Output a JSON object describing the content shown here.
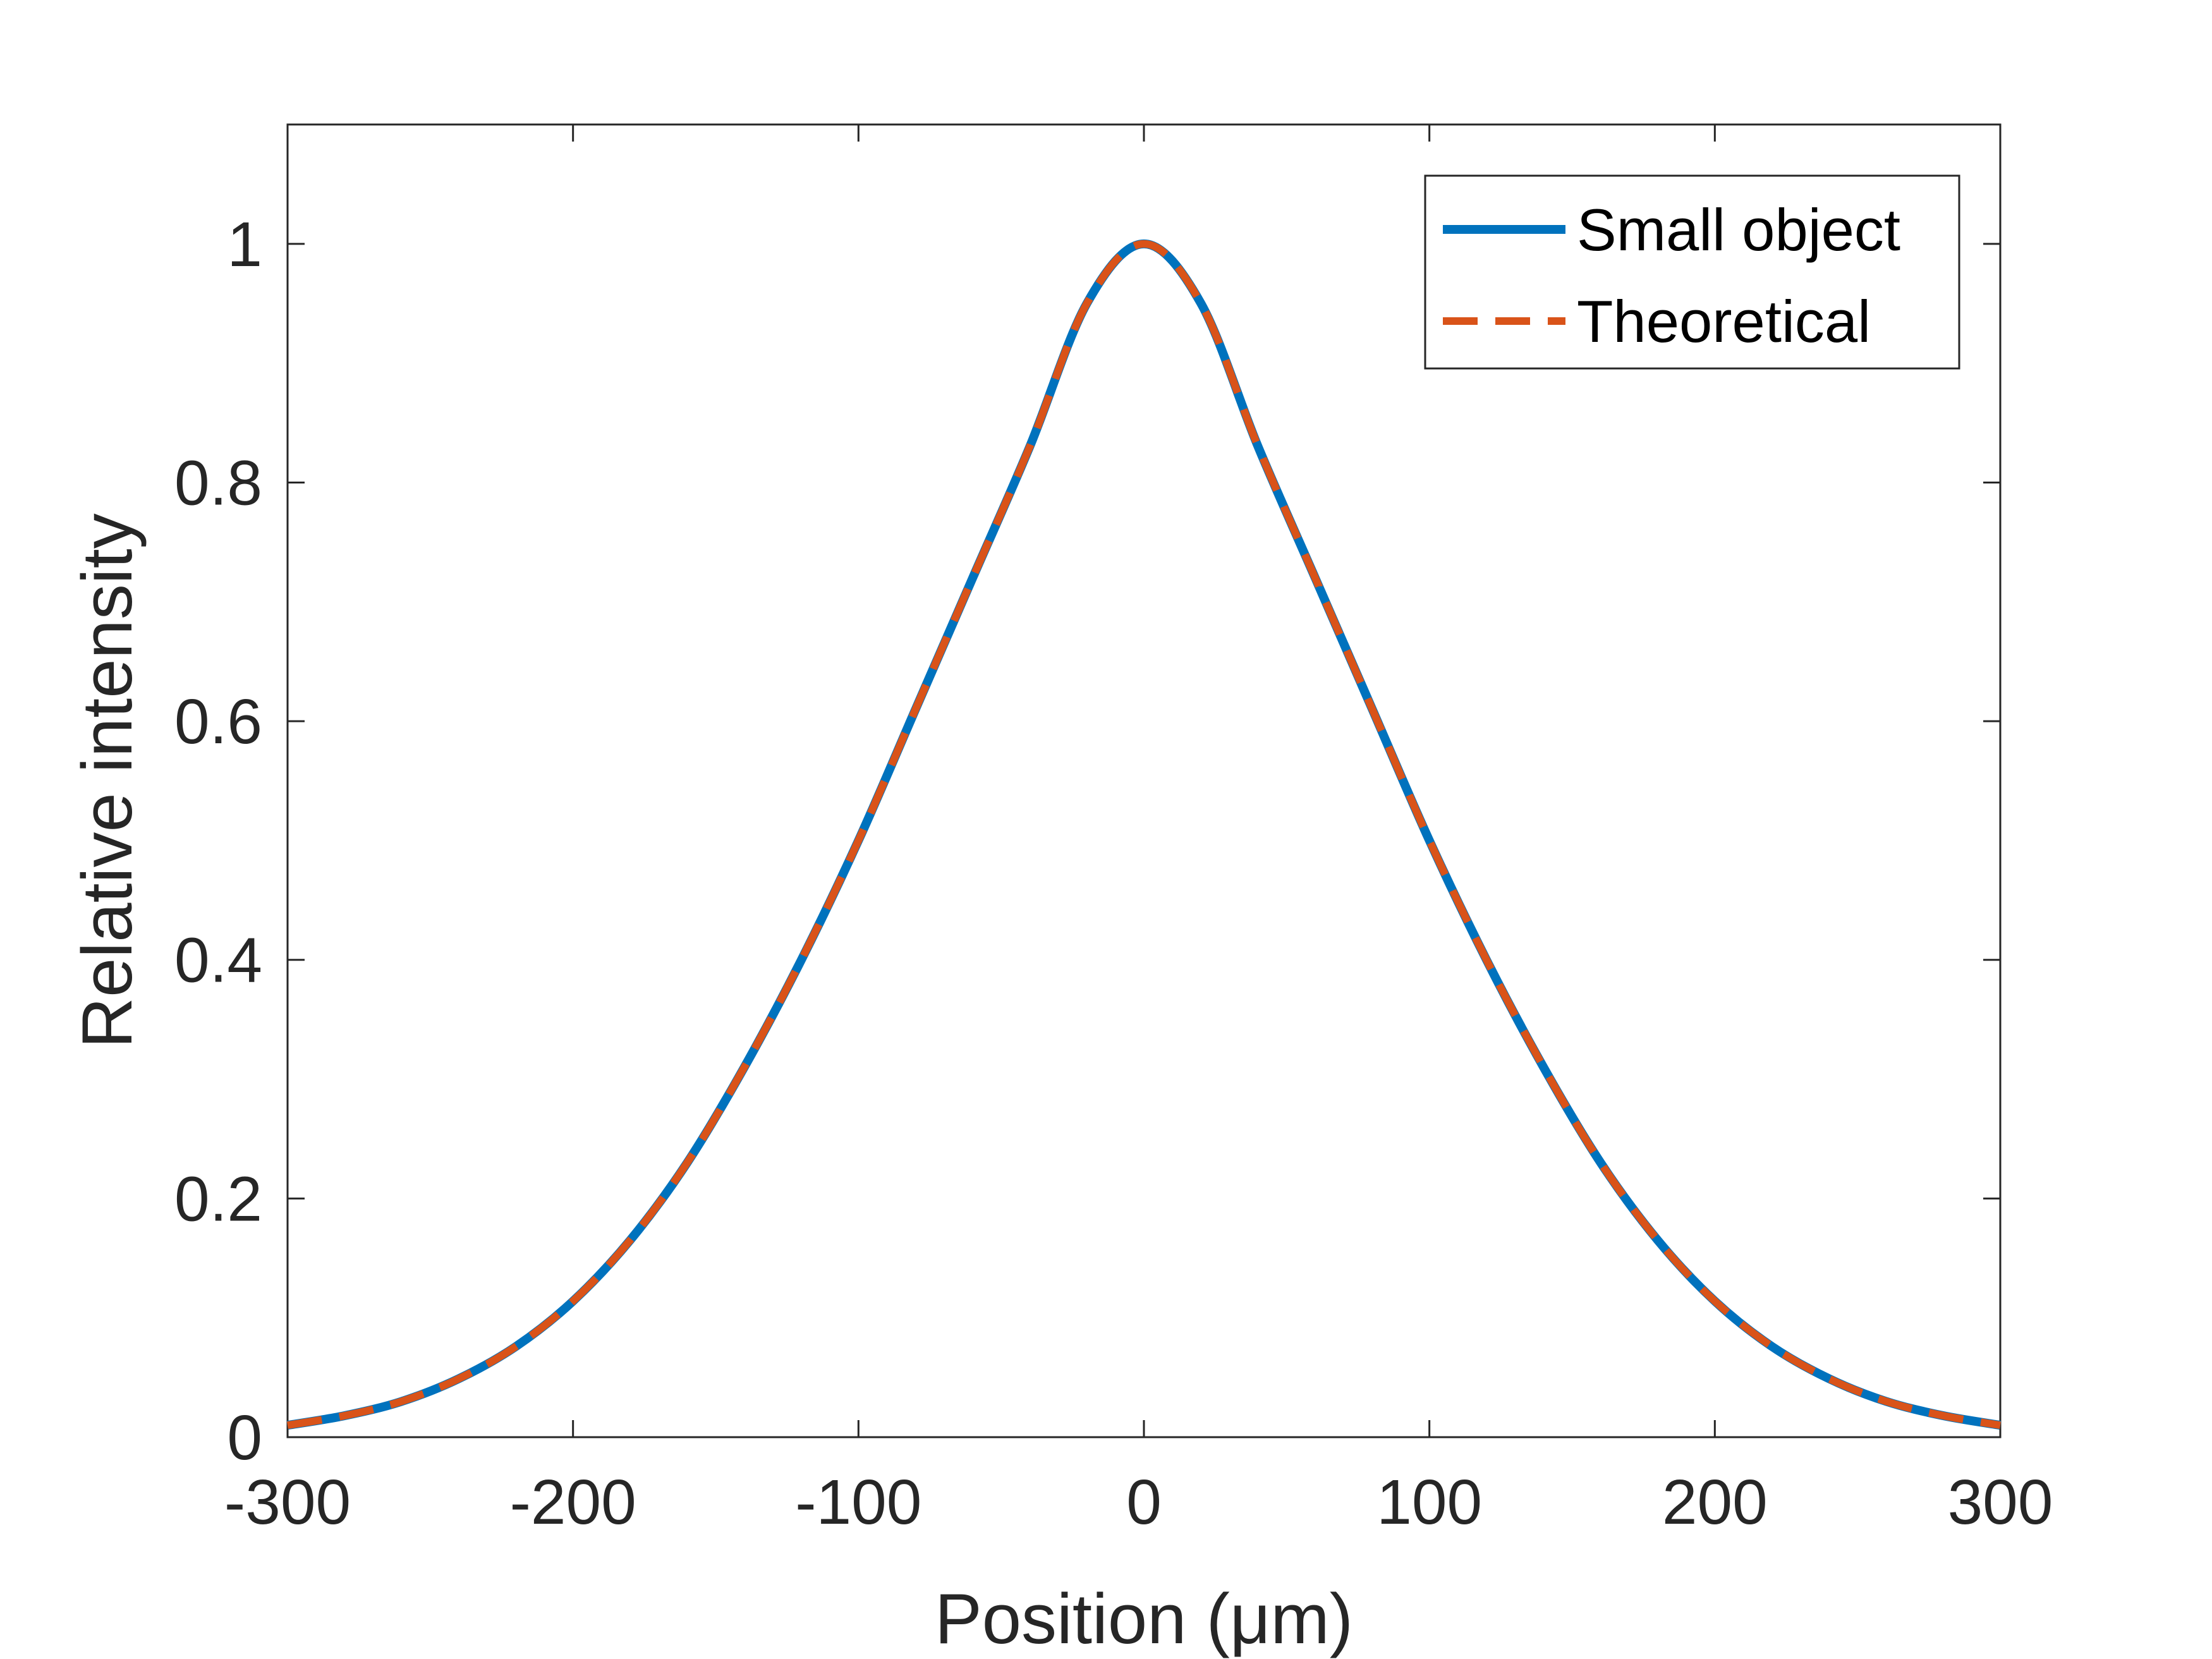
{
  "chart_data": {
    "type": "line",
    "title": "",
    "xlabel": "Position (μm)",
    "ylabel": "Relative intensity",
    "xlim": [
      -300,
      300
    ],
    "ylim": [
      0,
      1.1
    ],
    "xticks": [
      -300,
      -200,
      -100,
      0,
      100,
      200,
      300
    ],
    "xtick_labels": [
      "-300",
      "-200",
      "-100",
      "0",
      "100",
      "200",
      "300"
    ],
    "yticks": [
      0,
      0.2,
      0.4,
      0.6,
      0.8,
      1
    ],
    "ytick_labels": [
      "0",
      "0.2",
      "0.4",
      "0.6",
      "0.8",
      "1"
    ],
    "grid": false,
    "legend": "top-right",
    "x": [
      -300,
      -280,
      -260,
      -240,
      -220,
      -200,
      -180,
      -160,
      -140,
      -120,
      -100,
      -80,
      -60,
      -40,
      -20,
      0,
      20,
      40,
      60,
      80,
      100,
      120,
      140,
      160,
      180,
      200,
      220,
      240,
      260,
      280,
      300
    ],
    "series": [
      {
        "name": "Small object",
        "color": "#0072BD",
        "style": "solid",
        "values": [
          0.01,
          0.018,
          0.03,
          0.049,
          0.076,
          0.114,
          0.165,
          0.23,
          0.31,
          0.4,
          0.5,
          0.61,
          0.72,
          0.83,
          0.95,
          1,
          0.95,
          0.83,
          0.72,
          0.61,
          0.5,
          0.4,
          0.31,
          0.23,
          0.165,
          0.114,
          0.076,
          0.049,
          0.03,
          0.018,
          0.01
        ]
      },
      {
        "name": "Theoretical",
        "color": "#D95319",
        "style": "dashed",
        "values": [
          0.01,
          0.018,
          0.03,
          0.049,
          0.076,
          0.114,
          0.165,
          0.23,
          0.31,
          0.4,
          0.5,
          0.61,
          0.72,
          0.83,
          0.95,
          1,
          0.95,
          0.83,
          0.72,
          0.61,
          0.5,
          0.4,
          0.31,
          0.23,
          0.165,
          0.114,
          0.076,
          0.049,
          0.03,
          0.018,
          0.01
        ]
      }
    ]
  }
}
